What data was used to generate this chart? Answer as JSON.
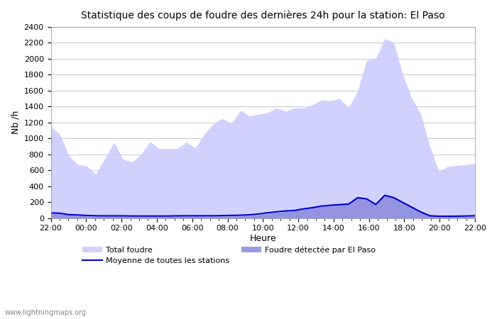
{
  "title": "Statistique des coups de foudre des dernières 24h pour la station: El Paso",
  "xlabel": "Heure",
  "ylabel": "Nb /h",
  "watermark": "www.lightningmaps.org",
  "xlim": [
    0,
    48
  ],
  "ylim": [
    0,
    2400
  ],
  "yticks": [
    0,
    200,
    400,
    600,
    800,
    1000,
    1200,
    1400,
    1600,
    1800,
    2000,
    2200,
    2400
  ],
  "xtick_labels": [
    "22:00",
    "00:00",
    "02:00",
    "04:00",
    "06:00",
    "08:00",
    "10:00",
    "12:00",
    "14:00",
    "16:00",
    "18:00",
    "20:00",
    "22:00"
  ],
  "bg_color": "#ffffff",
  "grid_color": "#cccccc",
  "total_color": "#ccccff",
  "elpaso_color": "#8888dd",
  "mean_color": "#0000cc",
  "total_alpha": 0.7,
  "elpaso_alpha": 0.85,
  "total_foudre": [
    1150,
    1050,
    780,
    670,
    650,
    550,
    750,
    950,
    740,
    700,
    800,
    960,
    870,
    870,
    870,
    950,
    880,
    1050,
    1180,
    1250,
    1180,
    1350,
    1280,
    1300,
    1320,
    1380,
    1340,
    1380,
    1380,
    1420,
    1480,
    1470,
    1500,
    1380,
    1600,
    1980,
    2000,
    2250,
    2200,
    1800,
    1500,
    1300,
    900,
    580,
    650,
    660,
    670,
    680
  ],
  "elpaso_foudre": [
    60,
    55,
    35,
    30,
    25,
    20,
    20,
    20,
    20,
    18,
    18,
    18,
    18,
    18,
    20,
    22,
    22,
    22,
    22,
    22,
    25,
    25,
    30,
    40,
    55,
    70,
    80,
    90,
    110,
    130,
    150,
    160,
    170,
    180,
    260,
    240,
    170,
    290,
    260,
    200,
    140,
    80,
    30,
    20,
    20,
    20,
    20,
    20
  ],
  "mean_line": [
    65,
    60,
    42,
    38,
    32,
    28,
    27,
    27,
    27,
    25,
    25,
    25,
    25,
    25,
    27,
    28,
    28,
    28,
    28,
    30,
    33,
    35,
    40,
    50,
    65,
    78,
    88,
    95,
    115,
    130,
    150,
    160,
    168,
    175,
    255,
    240,
    170,
    285,
    255,
    195,
    135,
    75,
    28,
    22,
    22,
    23,
    25,
    28
  ]
}
